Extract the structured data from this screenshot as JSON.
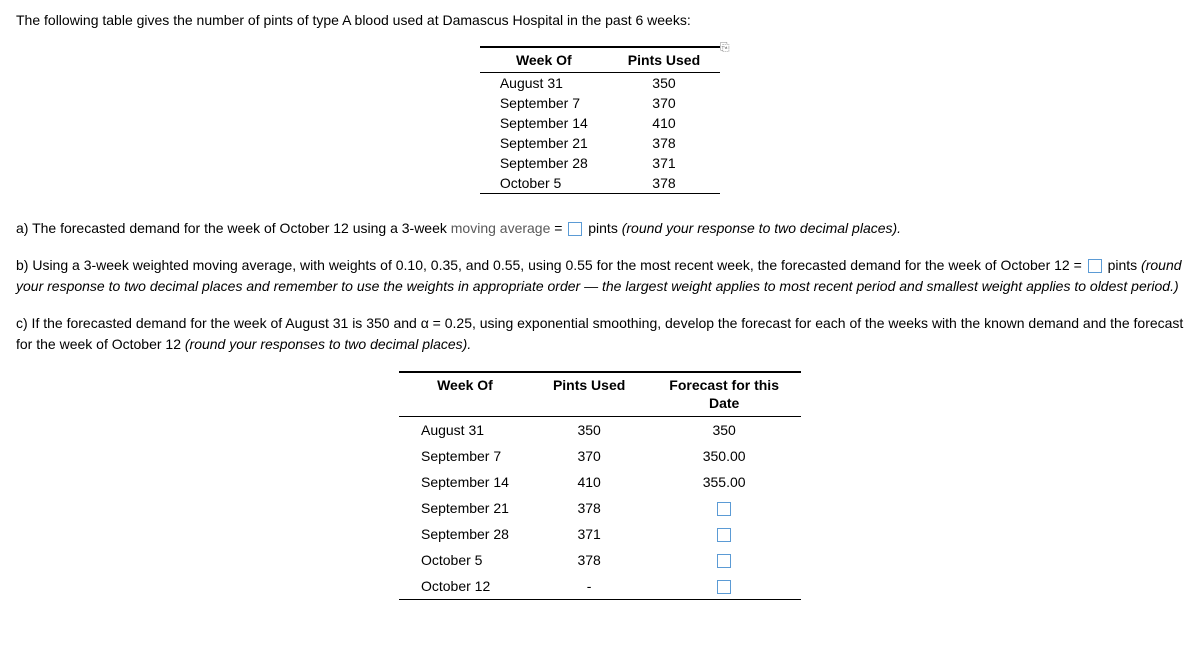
{
  "intro": "The following table gives the number of pints of type A blood used at Damascus Hospital in the past 6 weeks:",
  "table1": {
    "headers": [
      "Week Of",
      "Pints Used"
    ],
    "rows": [
      [
        "August 31",
        "350"
      ],
      [
        "September 7",
        "370"
      ],
      [
        "September 14",
        "410"
      ],
      [
        "September 21",
        "378"
      ],
      [
        "September 28",
        "371"
      ],
      [
        "October 5",
        "378"
      ]
    ]
  },
  "qa": {
    "pre": "a) The forecasted demand for the week of October 12 using a 3-week ",
    "link": "moving average",
    "post1": " = ",
    "post2": " pints ",
    "hint": "(round your response to two decimal places)."
  },
  "qb": {
    "pre": "b) Using a 3-week weighted moving average, with weights of 0.10, 0.35, and 0.55, using 0.55 for the most recent week, the forecasted demand for the week of October 12 = ",
    "post": " pints ",
    "hint": "(round your response to two decimal places and remember to use the weights in appropriate order — the largest weight applies to most recent period and smallest weight applies to oldest period.)"
  },
  "qc": {
    "pre": "c) If the forecasted demand for the week of August 31 is 350 and α = 0.25, using exponential smoothing, develop the forecast for each of the weeks with the known demand and the forecast for the week of October 12 ",
    "hint": "(round your responses to two decimal places)."
  },
  "table2": {
    "headers": [
      "Week Of",
      "Pints Used",
      "Forecast for this Date"
    ],
    "rows": [
      {
        "week": "August 31",
        "pints": "350",
        "forecast": "350",
        "input": false
      },
      {
        "week": "September 7",
        "pints": "370",
        "forecast": "350.00",
        "input": false
      },
      {
        "week": "September 14",
        "pints": "410",
        "forecast": "355.00",
        "input": false
      },
      {
        "week": "September 21",
        "pints": "378",
        "forecast": "",
        "input": true
      },
      {
        "week": "September 28",
        "pints": "371",
        "forecast": "",
        "input": true
      },
      {
        "week": "October 5",
        "pints": "378",
        "forecast": "",
        "input": true
      },
      {
        "week": "October 12",
        "pints": "-",
        "forecast": "",
        "input": true
      }
    ]
  },
  "copy_icon": "⎘"
}
